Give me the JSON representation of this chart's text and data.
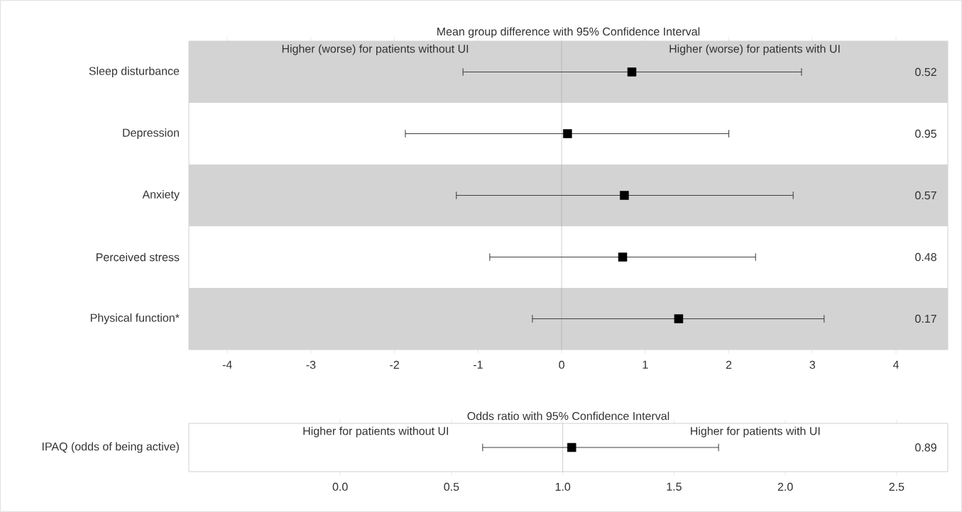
{
  "chart_data": [
    {
      "type": "scatter",
      "orientation": "horizontal",
      "title": "Mean group difference with 95% Confidence Interval",
      "categories": [
        "Sleep disturbance",
        "Depression",
        "Anxiety",
        "Perceived stress",
        "Physical function*"
      ],
      "values": [
        0.84,
        0.07,
        0.75,
        0.73,
        1.4
      ],
      "errors": [
        [
          -1.18,
          2.87
        ],
        [
          -1.87,
          2.0
        ],
        [
          -1.26,
          2.77
        ],
        [
          -0.86,
          2.32
        ],
        [
          -0.35,
          3.14
        ]
      ],
      "color": "#000000",
      "marker": "square",
      "xlim": [
        -4.46,
        4.62
      ],
      "xticks": [
        -4,
        -3,
        -2,
        -1,
        0,
        1,
        2,
        3,
        4
      ],
      "ref_lines": [
        {
          "axis": "x",
          "value": 0,
          "color": "#a0a0a0"
        }
      ],
      "bands": [
        {
          "axis": "y",
          "from": "Sleep disturbance",
          "to": "Sleep disturbance",
          "color": "#d3d3d3"
        },
        {
          "axis": "y",
          "from": "Anxiety",
          "to": "Anxiety",
          "color": "#d3d3d3"
        },
        {
          "axis": "y",
          "from": "Physical function*",
          "to": "Physical function*",
          "color": "#d3d3d3"
        }
      ],
      "annotations": [
        "Higher (worse) for patients without UI",
        "Higher (worse) for patients with UI",
        "0.52",
        "0.95",
        "0.57",
        "0.48",
        "0.17"
      ]
    },
    {
      "type": "scatter",
      "orientation": "horizontal",
      "title": "Odds ratio with 95% Confidence Interval",
      "categories": [
        "IPAQ (odds of being active)"
      ],
      "values": [
        1.04
      ],
      "errors": [
        [
          0.64,
          1.7
        ]
      ],
      "color": "#000000",
      "marker": "square",
      "xlim": [
        -0.68,
        2.73
      ],
      "xticks": [
        {
          "value": 0,
          "label": "0.0"
        },
        {
          "value": 0.5,
          "label": "0.5"
        },
        {
          "value": 1,
          "label": "1.0"
        },
        {
          "value": 1.5,
          "label": "1.5"
        },
        {
          "value": 2,
          "label": "2.0"
        },
        {
          "value": 2.5,
          "label": "2.5"
        }
      ],
      "ref_lines": [
        {
          "axis": "x",
          "value": 1,
          "color": "#a0a0a0"
        }
      ],
      "annotations": [
        "Higher for patients without UI",
        "Higher for patients with UI",
        "0.89"
      ]
    }
  ]
}
